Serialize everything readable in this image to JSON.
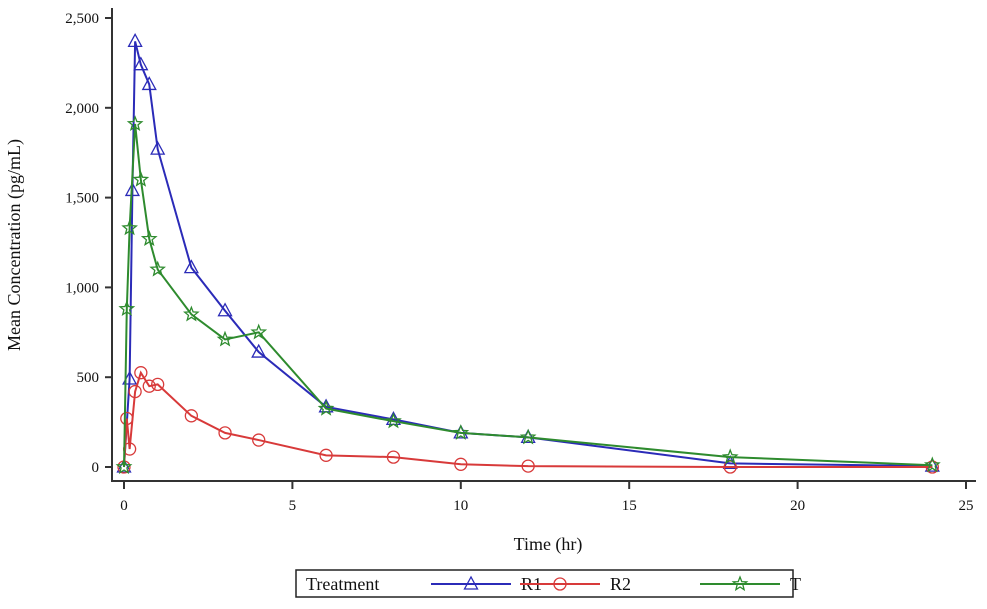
{
  "chart_data": {
    "type": "line",
    "xlabel": "Time (hr)",
    "ylabel": "Mean Concentration (pg/mL)",
    "xlim": [
      0,
      25
    ],
    "ylim": [
      0,
      2500
    ],
    "xticks": [
      "0",
      "5",
      "10",
      "15",
      "20",
      "25"
    ],
    "yticks": [
      "0",
      "500",
      "1,000",
      "1,500",
      "2,000",
      "2,500"
    ],
    "grid": false,
    "legend": {
      "title": "Treatment",
      "placement": "bottom"
    },
    "series": [
      {
        "name": "R1",
        "color": "#2b2bb8",
        "marker": "triangle",
        "x": [
          0,
          0.167,
          0.25,
          0.33,
          0.5,
          0.75,
          1,
          2,
          3,
          4,
          6,
          8,
          10,
          12,
          18,
          24
        ],
        "y": [
          0,
          490,
          1540,
          2370,
          2240,
          2130,
          1770,
          1110,
          870,
          640,
          335,
          265,
          190,
          165,
          20,
          5
        ]
      },
      {
        "name": "R2",
        "color": "#d83a3a",
        "marker": "circle",
        "x": [
          0,
          0.083,
          0.167,
          0.33,
          0.5,
          0.75,
          1,
          2,
          3,
          4,
          6,
          8,
          10,
          12,
          18,
          24
        ],
        "y": [
          0,
          270,
          100,
          420,
          525,
          450,
          460,
          285,
          190,
          150,
          65,
          55,
          15,
          5,
          0,
          0
        ]
      },
      {
        "name": "T",
        "color": "#2e8b2e",
        "marker": "star",
        "x": [
          0,
          0.083,
          0.167,
          0.33,
          0.5,
          0.75,
          1,
          2,
          3,
          4,
          6,
          8,
          10,
          12,
          18,
          24
        ],
        "y": [
          0,
          880,
          1330,
          1910,
          1600,
          1270,
          1100,
          850,
          710,
          750,
          325,
          255,
          190,
          165,
          55,
          10
        ]
      }
    ]
  }
}
